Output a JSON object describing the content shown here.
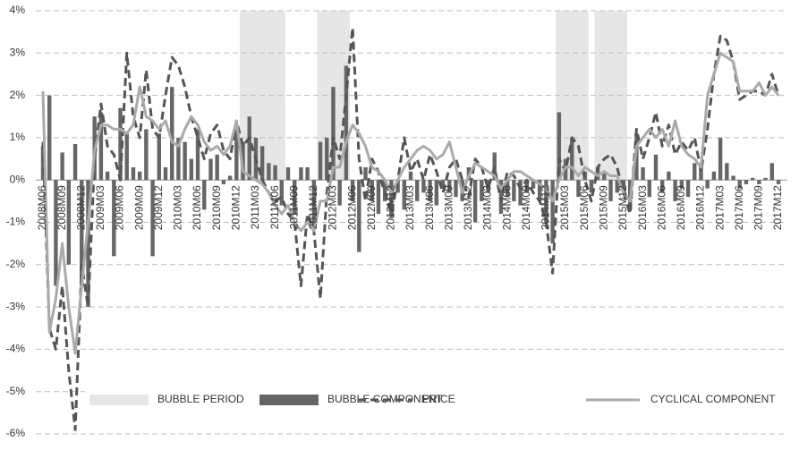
{
  "chart_data": {
    "type": "combo",
    "categories": [
      "2008M06",
      null,
      null,
      "2008M09",
      null,
      null,
      "2008M12",
      null,
      null,
      "2009M03",
      null,
      null,
      "2009M06",
      null,
      null,
      "2009M09",
      null,
      null,
      "2009M12",
      null,
      null,
      "2010M03",
      null,
      null,
      "2010M06",
      null,
      null,
      "2010M09",
      null,
      null,
      "2010M12",
      null,
      null,
      "2011M03",
      null,
      null,
      "2011M06",
      null,
      null,
      "2011M09",
      null,
      null,
      "2011M12",
      null,
      null,
      "2012M03",
      null,
      null,
      "2012M06",
      null,
      null,
      "2012M09",
      null,
      null,
      "2012M12",
      null,
      null,
      "2013M03",
      null,
      null,
      "2013M06",
      null,
      null,
      "2013M09",
      null,
      null,
      "2013M12",
      null,
      null,
      "2014M03",
      null,
      null,
      "2014M06",
      null,
      null,
      "2014M09",
      null,
      null,
      "2014M12",
      null,
      null,
      "2015M03",
      null,
      null,
      "2015M06",
      null,
      null,
      "2015M09",
      null,
      null,
      "2015M12",
      null,
      null,
      "2016M03",
      null,
      null,
      "2016M06",
      null,
      null,
      "2016M09",
      null,
      null,
      "2016M12",
      null,
      null,
      "2017M03",
      null,
      null,
      "2017M06",
      null,
      null,
      "2017M09",
      null,
      null,
      "2017M12"
    ],
    "series": [
      {
        "name": "BUBBLE PERIOD",
        "type": "band",
        "color": "#e6e6e6",
        "values": [
          null,
          null,
          null,
          null,
          null,
          null,
          null,
          null,
          null,
          null,
          null,
          null,
          null,
          null,
          null,
          null,
          null,
          null,
          null,
          null,
          null,
          null,
          null,
          null,
          null,
          null,
          null,
          null,
          null,
          null,
          null,
          1,
          1,
          1,
          1,
          1,
          1,
          1,
          null,
          null,
          null,
          null,
          null,
          1,
          1,
          1,
          1,
          1,
          null,
          null,
          null,
          null,
          null,
          null,
          null,
          null,
          null,
          null,
          null,
          null,
          null,
          null,
          null,
          null,
          null,
          null,
          null,
          null,
          null,
          null,
          null,
          null,
          null,
          null,
          null,
          null,
          null,
          null,
          null,
          null,
          1,
          1,
          1,
          1,
          1,
          null,
          1,
          1,
          1,
          1,
          1,
          null,
          null,
          null,
          null,
          null,
          null,
          null,
          null,
          null,
          null,
          null,
          null,
          null,
          null,
          null,
          null,
          null,
          null,
          null,
          null,
          null,
          null,
          null,
          null
        ]
      },
      {
        "name": "BUBBLE COMPONENT",
        "type": "bar",
        "color": "#666666",
        "values": [
          0.8,
          2.0,
          -2.5,
          0.65,
          -2.0,
          0.85,
          -2.5,
          -3.0,
          1.5,
          1.6,
          0.2,
          -1.8,
          1.7,
          1.1,
          0.3,
          0.2,
          1.2,
          -1.8,
          1.1,
          0.3,
          2.2,
          1.0,
          0.9,
          0.5,
          1.2,
          -0.7,
          0.5,
          0.6,
          -0.1,
          0.1,
          1.2,
          0.9,
          1.5,
          1.0,
          0.8,
          0.4,
          0.35,
          -0.6,
          0.3,
          -0.8,
          0.3,
          0.3,
          -1.1,
          0.9,
          1.0,
          2.2,
          -0.6,
          2.7,
          -0.5,
          -1.7,
          0.3,
          -0.5,
          -0.8,
          -0.5,
          -0.9,
          -0.3,
          -0.7,
          0.2,
          -0.5,
          -0.3,
          -0.5,
          -0.6,
          -0.2,
          -0.3,
          -0.4,
          -0.5,
          0.3,
          -1.0,
          -0.5,
          -0.3,
          0.65,
          -0.8,
          -0.4,
          -0.5,
          -0.6,
          -0.3,
          -0.2,
          -0.5,
          -1.0,
          -1.5,
          1.6,
          0.5,
          1.0,
          -0.4,
          0.2,
          -0.3,
          0.3,
          0.2,
          -0.5,
          -0.3,
          -0.3,
          -0.7,
          1.1,
          0.3,
          -0.4,
          0.6,
          -0.3,
          0.2,
          -0.5,
          -0.2,
          -0.4,
          0.4,
          0.3,
          -0.2,
          0.2,
          1.0,
          0.4,
          0.1,
          -0.2,
          -0.1,
          0.05,
          -0.1,
          0.05,
          0.4,
          -0.1
        ]
      },
      {
        "name": "PRICE",
        "type": "line",
        "dash": true,
        "color": "#555555",
        "values": [
          0.9,
          -3.5,
          -4.0,
          -2.5,
          -4.5,
          -5.9,
          -2.0,
          -3.0,
          0.5,
          1.8,
          0.8,
          0.6,
          0.0,
          3.0,
          1.5,
          1.0,
          2.6,
          1.2,
          1.0,
          2.0,
          2.9,
          2.7,
          2.2,
          1.5,
          1.0,
          0.5,
          1.1,
          1.3,
          0.7,
          0.5,
          1.4,
          0.8,
          1.0,
          0.5,
          0.0,
          -0.3,
          -0.5,
          -0.4,
          -0.8,
          -1.0,
          -2.5,
          -0.8,
          -1.2,
          -2.8,
          -0.3,
          1.0,
          0.5,
          2.0,
          3.6,
          0.5,
          -0.5,
          0.5,
          0.2,
          -0.3,
          -0.8,
          0.0,
          1.0,
          0.2,
          0.5,
          0.0,
          0.6,
          0.2,
          -0.3,
          0.3,
          0.5,
          0.0,
          -0.4,
          0.5,
          0.3,
          -0.2,
          0.3,
          -0.5,
          0.2,
          0.1,
          -0.2,
          0.0,
          -0.3,
          -0.5,
          -1.0,
          -2.2,
          0.5,
          0.2,
          1.0,
          0.8,
          0.0,
          -0.5,
          0.3,
          0.5,
          0.6,
          0.3,
          -0.3,
          -0.8,
          1.2,
          0.5,
          1.0,
          1.6,
          0.8,
          1.3,
          0.6,
          0.9,
          0.7,
          1.0,
          0.2,
          1.2,
          2.5,
          3.4,
          3.3,
          2.8,
          1.9,
          2.0,
          2.1,
          2.1,
          2.0,
          2.5,
          2.0
        ]
      },
      {
        "name": "CYCLICAL COMPONENT",
        "type": "line",
        "dash": false,
        "color": "#aaaaaa",
        "values": [
          2.1,
          -3.6,
          -2.8,
          -1.5,
          -3.0,
          -4.1,
          -2.5,
          -1.0,
          0.7,
          1.3,
          1.3,
          1.2,
          1.2,
          1.1,
          1.3,
          2.2,
          1.5,
          1.4,
          1.2,
          1.4,
          0.9,
          0.8,
          1.2,
          1.5,
          1.3,
          0.9,
          0.7,
          0.8,
          0.6,
          0.8,
          1.4,
          0.2,
          0.1,
          0.0,
          -0.1,
          -0.3,
          -0.6,
          -0.8,
          -0.6,
          -1.0,
          -1.2,
          -1.0,
          -1.2,
          -0.5,
          -0.5,
          0.3,
          0.3,
          0.9,
          1.3,
          1.1,
          0.8,
          0.3,
          0.2,
          0.0,
          -0.3,
          0.0,
          0.3,
          0.5,
          0.7,
          0.8,
          0.7,
          0.5,
          0.6,
          0.9,
          0.3,
          -0.3,
          0.1,
          0.4,
          0.3,
          0.2,
          0.1,
          -0.2,
          0.0,
          0.2,
          0.2,
          0.1,
          0.0,
          -0.1,
          -0.2,
          -0.5,
          0.0,
          0.3,
          0.3,
          0.1,
          0.3,
          0.2,
          0.1,
          0.2,
          0.1,
          0.1,
          -0.3,
          -0.5,
          0.8,
          1.0,
          1.2,
          1.0,
          1.2,
          0.8,
          1.4,
          0.8,
          0.6,
          0.5,
          0.3,
          2.0,
          2.5,
          3.0,
          2.9,
          2.8,
          2.1,
          2.1,
          2.1,
          2.3,
          2.0,
          2.2,
          2.0
        ]
      }
    ],
    "ylim": [
      -6,
      4
    ],
    "yticks": [
      {
        "value": -6,
        "label": "-6%"
      },
      {
        "value": -5,
        "label": "-5%"
      },
      {
        "value": -4,
        "label": "-4%"
      },
      {
        "value": -3,
        "label": "-3%"
      },
      {
        "value": -2,
        "label": "-2%"
      },
      {
        "value": -1,
        "label": "-1%"
      },
      {
        "value": 0,
        "label": "0%"
      },
      {
        "value": 1,
        "label": "1%"
      },
      {
        "value": 2,
        "label": "2%"
      },
      {
        "value": 3,
        "label": "3%"
      },
      {
        "value": 4,
        "label": "4%"
      }
    ],
    "grid": true
  }
}
